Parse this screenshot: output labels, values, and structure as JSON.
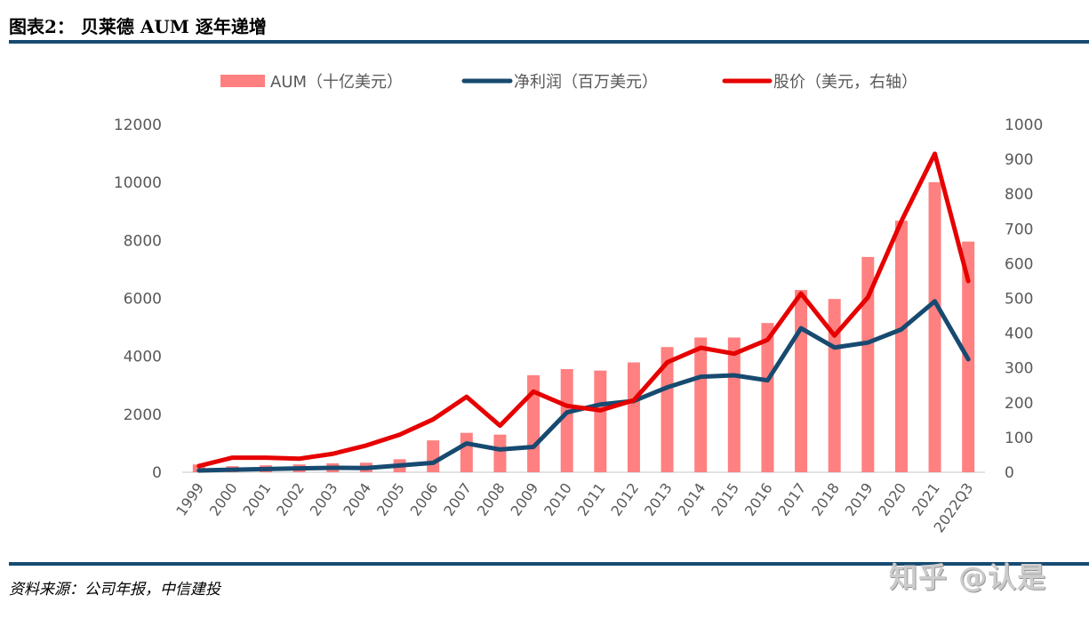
{
  "header": {
    "title": "图表2：  贝莱德 AUM 逐年递增"
  },
  "footer": {
    "source": "资料来源：公司年报，中信建投",
    "watermark": "知乎 @认是"
  },
  "colors": {
    "aum": "#ff8080",
    "net_income": "#174a70",
    "price": "#e60000",
    "rule": "#174a70"
  },
  "chart_data": {
    "type": "bar+line",
    "title": "",
    "categories": [
      "1999",
      "2000",
      "2001",
      "2002",
      "2003",
      "2004",
      "2005",
      "2006",
      "2007",
      "2008",
      "2009",
      "2010",
      "2011",
      "2012",
      "2013",
      "2014",
      "2015",
      "2016",
      "2017",
      "2018",
      "2019",
      "2020",
      "2021",
      "2022Q3"
    ],
    "left_axis": {
      "ylim": [
        0,
        12000
      ],
      "ticks": [
        "0",
        "2000",
        "4000",
        "6000",
        "8000",
        "10000",
        "12000"
      ]
    },
    "right_axis": {
      "ylim": [
        0,
        1000
      ],
      "ticks": [
        "0",
        "100",
        "200",
        "300",
        "400",
        "500",
        "600",
        "700",
        "800",
        "900",
        "1000"
      ]
    },
    "grid": false,
    "legend": "top",
    "series": [
      {
        "name": "AUM（十亿美元）",
        "type": "bar",
        "axis": "left",
        "values": [
          270,
          210,
          240,
          270,
          310,
          330,
          450,
          1100,
          1360,
          1300,
          3350,
          3560,
          3510,
          3790,
          4320,
          4650,
          4650,
          5150,
          6290,
          5980,
          7430,
          8680,
          10010,
          7960
        ]
      },
      {
        "name": "净利润（百万美元）",
        "type": "line",
        "axis": "left",
        "values": [
          60,
          90,
          110,
          135,
          155,
          145,
          235,
          325,
          995,
          785,
          875,
          2065,
          2340,
          2460,
          2930,
          3295,
          3345,
          3170,
          4970,
          4305,
          4475,
          4930,
          5900,
          3900
        ]
      },
      {
        "name": "股价（美元，右轴）",
        "type": "line",
        "axis": "right",
        "values": [
          18,
          42,
          42,
          39,
          53,
          77,
          108,
          152,
          217,
          134,
          232,
          191,
          178,
          207,
          316,
          358,
          341,
          381,
          514,
          393,
          503,
          722,
          916,
          550
        ]
      }
    ]
  }
}
